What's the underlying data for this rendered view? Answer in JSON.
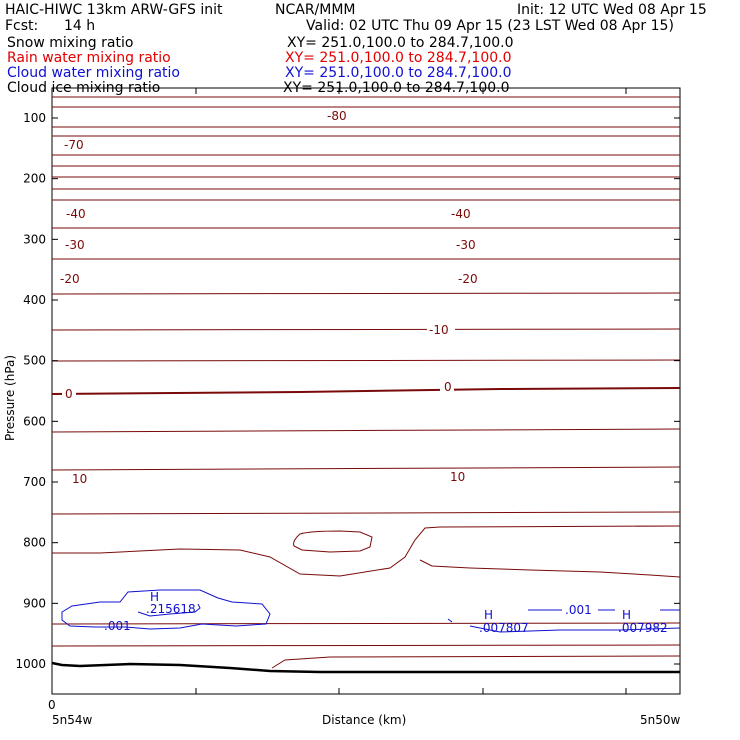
{
  "header": {
    "title": "HAIC-HIWC 13km ARW-GFS init",
    "org": "NCAR/MMM",
    "init": "Init: 12 UTC Wed 08 Apr 15",
    "fcst_label": "Fcst:",
    "fcst_value": "14 h",
    "valid": "Valid: 02 UTC Thu 09 Apr 15 (23 LST Wed 08 Apr 15)"
  },
  "legend": [
    {
      "name": "Snow mixing ratio",
      "xy": "XY= 251.0,100.0 to 284.7,100.0",
      "color": "#000000"
    },
    {
      "name": "Rain water mixing ratio",
      "xy": "XY= 251.0,100.0 to 284.7,100.0",
      "color": "#e00000"
    },
    {
      "name": "Cloud water mixing ratio",
      "xy": "XY= 251.0,100.0 to 284.7,100.0",
      "color": "#1010d0"
    },
    {
      "name": "Cloud ice mixing ratio",
      "xy": "XY= 251.0,100.0 to 284.7,100.0",
      "color": "#000000"
    }
  ],
  "chart_data": {
    "type": "line",
    "xlabel": "Distance (km)",
    "ylabel": "Pressure (hPa)",
    "x_ticks": [
      "0"
    ],
    "x_end_labels": {
      "left": "5n54w",
      "right": "5n50w"
    },
    "y_ticks": [
      100,
      200,
      300,
      400,
      500,
      600,
      700,
      800,
      900,
      1000
    ],
    "temperature_contours": {
      "color": "#7a0a0a",
      "labels": [
        "-80",
        "-70",
        "-40",
        "-40",
        "-30",
        "-30",
        "-20",
        "-20",
        "-10",
        "0",
        "0",
        "10",
        "10"
      ]
    },
    "cloud_water_labels": [
      {
        "text": "H",
        "value": ".215618"
      },
      {
        "text": "H",
        "value": ".007807"
      },
      {
        "text": "H",
        "value": ".007982"
      },
      {
        "text": "",
        "value": ".001"
      },
      {
        "text": "",
        "value": ".001"
      }
    ]
  }
}
